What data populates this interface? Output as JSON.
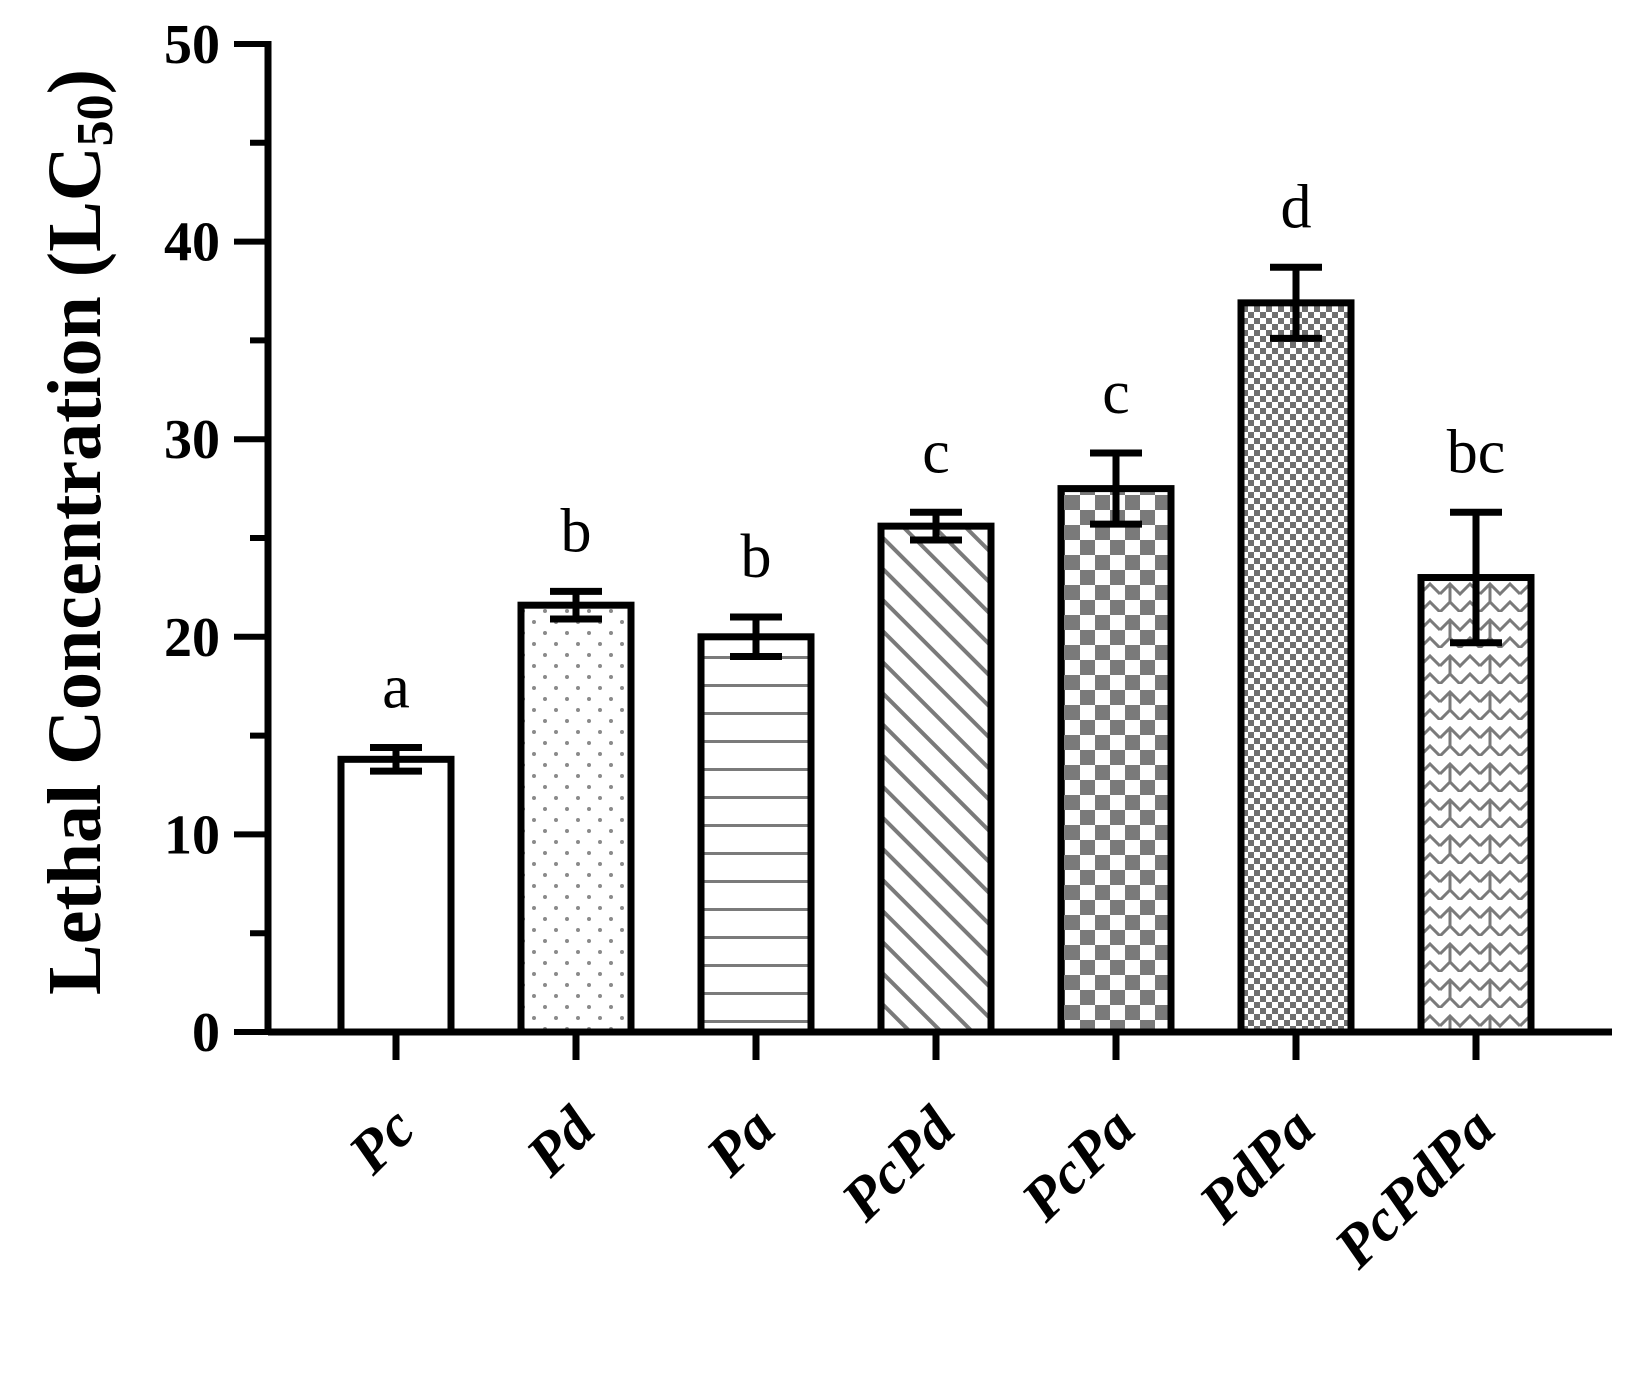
{
  "chart_data": {
    "type": "bar",
    "title": "",
    "xlabel": "",
    "ylabel": "Lethal Concentration (LC",
    "ylabel_subscript": "50",
    "ylabel_suffix": ")",
    "ylim": [
      0,
      50
    ],
    "yticks": [
      0,
      10,
      20,
      30,
      40,
      50
    ],
    "categories": [
      "Pc",
      "Pd",
      "Pa",
      "PcPd",
      "PcPa",
      "PdPa",
      "PcPdPa"
    ],
    "values": [
      13.8,
      21.6,
      20.0,
      25.6,
      27.5,
      36.9,
      23.0
    ],
    "error": [
      0.6,
      0.7,
      1.0,
      0.7,
      1.8,
      1.8,
      3.3
    ],
    "significance_letters": [
      "a",
      "b",
      "b",
      "c",
      "c",
      "d",
      "bc"
    ],
    "fill_patterns": [
      "none",
      "dots",
      "horizontal-lines",
      "diagonal-lines",
      "checker-coarse",
      "checker-fine",
      "zigzag"
    ],
    "colors": {
      "axis": "#000000",
      "bar_edge": "#000000",
      "pattern": "#7a7a7a",
      "background": "#ffffff"
    },
    "grid": false,
    "legend": "none"
  }
}
